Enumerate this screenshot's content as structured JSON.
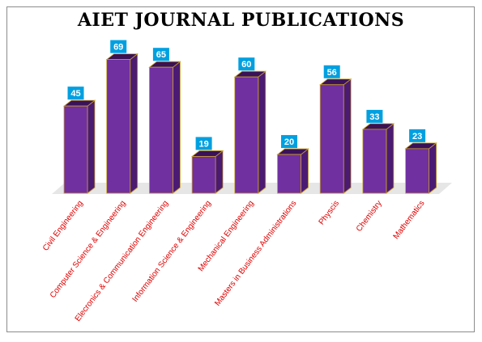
{
  "chart_data": {
    "type": "bar",
    "title": "AIET JOURNAL PUBLICATIONS",
    "categories": [
      "Civil Engineering",
      "Computer Science & Engineering",
      "Elecronics & Communication Engineering",
      "Information Science & Engineering",
      "Mechanical Engineering",
      "Masters in Business Administrations",
      "Physcis",
      "Chemistry",
      "Mathematics"
    ],
    "series": [
      {
        "values": [
          45,
          69,
          65,
          19,
          60,
          20,
          56,
          33,
          23
        ]
      }
    ],
    "ylim": [
      0,
      70
    ],
    "grid": false,
    "legend": "none",
    "data_labels": true,
    "colors": {
      "bar_front": "#7030a0",
      "bar_side": "#4b1b72",
      "bar_top": "#3a1258",
      "bar_edge": "#c9a227",
      "label_bg": "#00a0e0",
      "label_text": "#ffffff",
      "category_text": "#e00000",
      "floor": "#e6e6e6"
    }
  }
}
